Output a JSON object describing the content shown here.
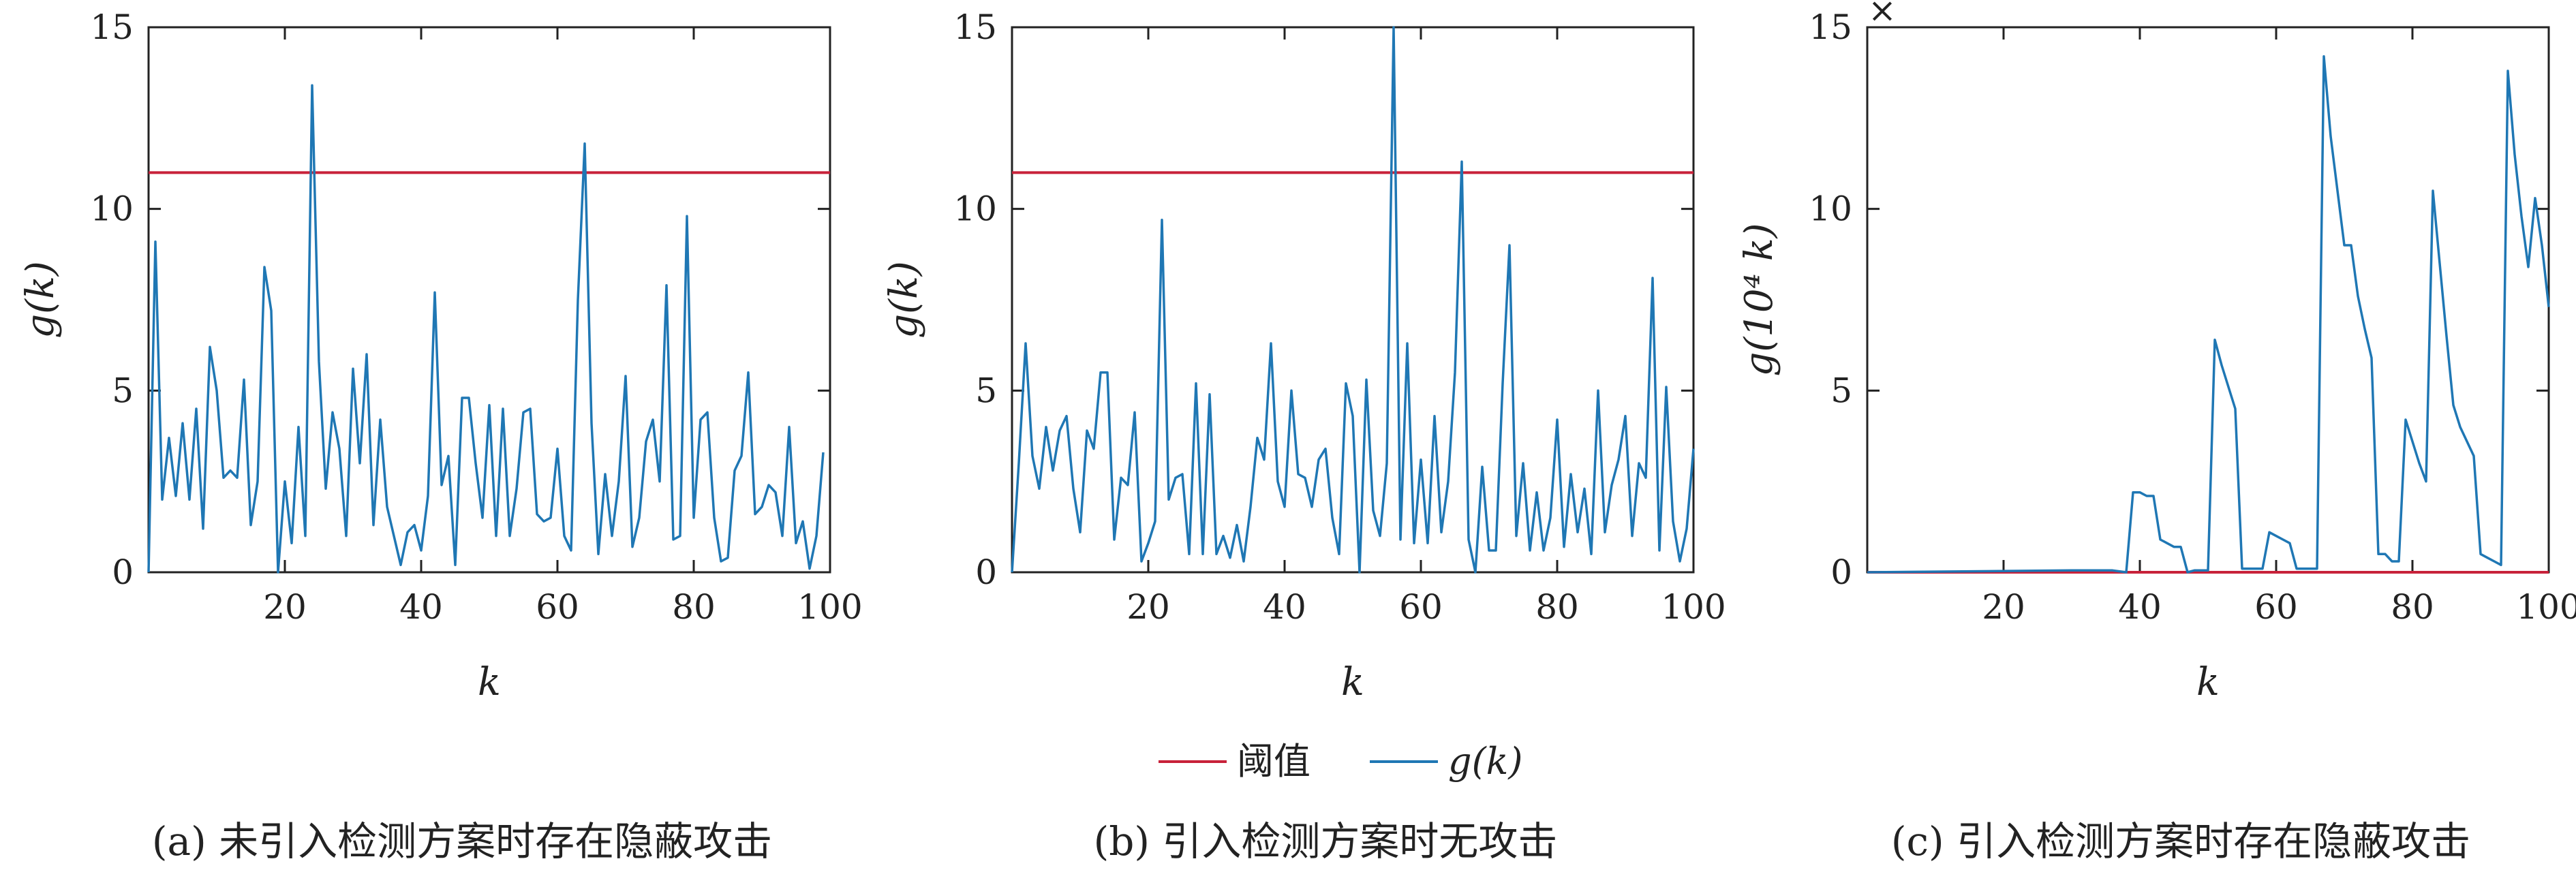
{
  "colors": {
    "threshold": "#c8223a",
    "signal": "#1f77b4",
    "axis": "#222222"
  },
  "legend": {
    "threshold_label": "阈值",
    "signal_label": "g(k)"
  },
  "chart_data": [
    {
      "type": "line",
      "caption": "(a) 未引入检测方案时存在隐蔽攻击",
      "xlabel": "k",
      "ylabel": "g(k)",
      "multiplier": "",
      "xlim": [
        0,
        100
      ],
      "ylim": [
        0,
        15
      ],
      "xticks": [
        20,
        40,
        60,
        80,
        100
      ],
      "yticks": [
        0,
        5,
        10,
        15
      ],
      "threshold": 11,
      "series": [
        {
          "name": "g(k)",
          "values": [
            0,
            9.1,
            2.0,
            3.7,
            2.1,
            4.1,
            2.0,
            4.5,
            1.2,
            6.2,
            5.0,
            2.6,
            2.8,
            2.6,
            5.3,
            1.3,
            2.5,
            8.4,
            7.2,
            0,
            2.5,
            0.8,
            4.0,
            1.0,
            13.4,
            5.8,
            2.3,
            4.4,
            3.4,
            1.0,
            5.6,
            3.0,
            6.0,
            1.3,
            4.2,
            1.8,
            1.0,
            0.2,
            1.1,
            1.3,
            0.6,
            2.1,
            7.7,
            2.4,
            3.2,
            0.2,
            4.8,
            4.8,
            3.0,
            1.5,
            4.6,
            1.0,
            4.5,
            1.0,
            2.3,
            4.4,
            4.5,
            1.6,
            1.4,
            1.5,
            3.4,
            1.0,
            0.6,
            7.5,
            11.8,
            4.1,
            0.5,
            2.7,
            1.0,
            2.5,
            5.4,
            0.7,
            1.5,
            3.6,
            4.2,
            2.5,
            7.9,
            0.9,
            1.0,
            9.8,
            1.5,
            4.2,
            4.4,
            1.5,
            0.3,
            0.4,
            2.8,
            3.2,
            5.5,
            1.6,
            1.8,
            2.4,
            2.2,
            1.0,
            4.0,
            0.8,
            1.4,
            0.1,
            1.0,
            3.3
          ]
        }
      ]
    },
    {
      "type": "line",
      "caption": "(b) 引入检测方案时无攻击",
      "xlabel": "k",
      "ylabel": "g(k)",
      "multiplier": "",
      "xlim": [
        0,
        100
      ],
      "ylim": [
        0,
        15
      ],
      "xticks": [
        20,
        40,
        60,
        80,
        100
      ],
      "yticks": [
        0,
        5,
        10,
        15
      ],
      "threshold": 11,
      "series": [
        {
          "name": "g(k)",
          "values": [
            0,
            3.0,
            6.3,
            3.2,
            2.3,
            4.0,
            2.8,
            3.9,
            4.3,
            2.3,
            1.1,
            3.9,
            3.4,
            5.5,
            5.5,
            0.9,
            2.6,
            2.4,
            4.4,
            0.3,
            0.8,
            1.4,
            9.7,
            2.0,
            2.6,
            2.7,
            0.5,
            5.2,
            0.5,
            4.9,
            0.5,
            1.0,
            0.4,
            1.3,
            0.3,
            1.8,
            3.7,
            3.1,
            6.3,
            2.5,
            1.8,
            5.0,
            2.7,
            2.6,
            1.8,
            3.1,
            3.4,
            1.5,
            0.5,
            5.2,
            4.3,
            0,
            5.3,
            1.7,
            1.0,
            3.0,
            15.0,
            0.9,
            6.3,
            0.8,
            3.1,
            0.8,
            4.3,
            1.1,
            2.5,
            5.5,
            11.3,
            0.9,
            0,
            2.9,
            0.6,
            0.6,
            5.2,
            9.0,
            1.0,
            3.0,
            0.6,
            2.2,
            0.6,
            1.5,
            4.2,
            0.7,
            2.7,
            1.1,
            2.3,
            0.5,
            5.0,
            1.1,
            2.4,
            3.1,
            4.3,
            1.0,
            3.0,
            2.6,
            8.1,
            0.6,
            5.1,
            1.4,
            0.3,
            1.2,
            3.4
          ]
        }
      ]
    },
    {
      "type": "line",
      "caption": "(c) 引入检测方案时存在隐蔽攻击",
      "xlabel": "k",
      "ylabel": "g(10⁴ k)",
      "multiplier": "×",
      "xlim": [
        0,
        100
      ],
      "ylim": [
        0,
        15
      ],
      "xticks": [
        20,
        40,
        60,
        80,
        100
      ],
      "yticks": [
        0,
        5,
        10,
        15
      ],
      "threshold": 0,
      "series": [
        {
          "name": "g(k)",
          "x": [
            0,
            30,
            36,
            38,
            39,
            40,
            41,
            42,
            43,
            44,
            45,
            46,
            47,
            48,
            49,
            50,
            51,
            52,
            53,
            54,
            55,
            56,
            57,
            58,
            59,
            60,
            61,
            62,
            63,
            64,
            65,
            66,
            67,
            68,
            69,
            70,
            71,
            72,
            73,
            74,
            75,
            76,
            77,
            78,
            79,
            80,
            81,
            82,
            83,
            84,
            85,
            86,
            87,
            88,
            89,
            90,
            91,
            92,
            93,
            94,
            95,
            96,
            97,
            98,
            99,
            100
          ],
          "values": [
            0,
            0.05,
            0.05,
            0.0,
            2.2,
            2.2,
            2.1,
            2.1,
            0.9,
            0.8,
            0.7,
            0.7,
            0.0,
            0.05,
            0.05,
            0.05,
            6.4,
            5.7,
            5.1,
            4.5,
            0.1,
            0.1,
            0.1,
            0.1,
            1.1,
            1.0,
            0.9,
            0.8,
            0.1,
            0.1,
            0.1,
            0.1,
            14.2,
            12.0,
            10.5,
            9.0,
            9.0,
            7.6,
            6.7,
            5.9,
            0.5,
            0.5,
            0.3,
            0.3,
            4.2,
            3.6,
            3.0,
            2.5,
            10.5,
            8.5,
            6.5,
            4.6,
            4.0,
            3.6,
            3.2,
            0.5,
            0.4,
            0.3,
            0.2,
            13.8,
            11.5,
            9.8,
            8.4,
            10.3,
            9.0,
            7.3
          ]
        }
      ]
    }
  ]
}
